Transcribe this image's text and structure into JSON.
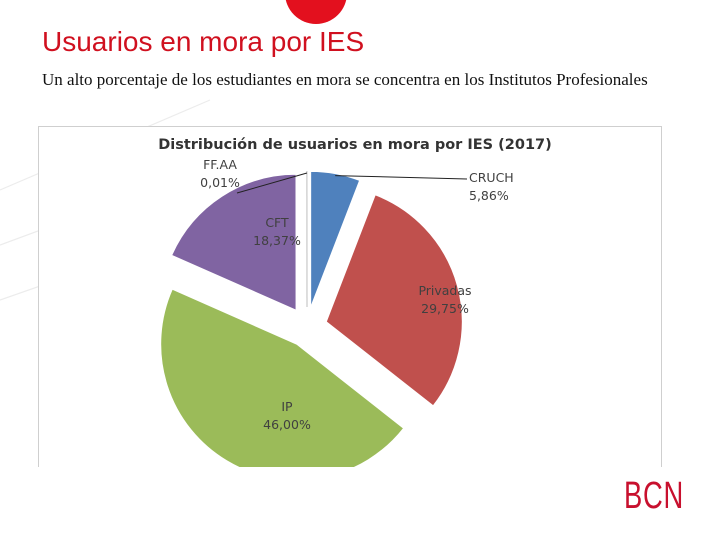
{
  "slide": {
    "title": "Usuarios en mora por IES",
    "subtitle": "Un alto porcentaje de los estudiantes en mora se concentra en los Institutos Profesionales",
    "logo_text": "BCN"
  },
  "colors": {
    "title_red": "#d0101f",
    "logo_red": "#c8102e"
  },
  "chart_data": {
    "type": "pie",
    "title": "Distribución de usuarios en mora por IES (2017)",
    "exploded": true,
    "slices": [
      {
        "name": "CRUCH",
        "value": 5.86,
        "label": "5,86%",
        "color": "#4f81bd"
      },
      {
        "name": "Privadas",
        "value": 29.75,
        "label": "29,75%",
        "color": "#c0504d"
      },
      {
        "name": "IP",
        "value": 46.0,
        "label": "46,00%",
        "color": "#9bbb59"
      },
      {
        "name": "CFT",
        "value": 18.37,
        "label": "18,37%",
        "color": "#8064a2"
      },
      {
        "name": "FF.AA",
        "value": 0.01,
        "label": "0,01%",
        "color": "#d0d0d0"
      }
    ]
  }
}
